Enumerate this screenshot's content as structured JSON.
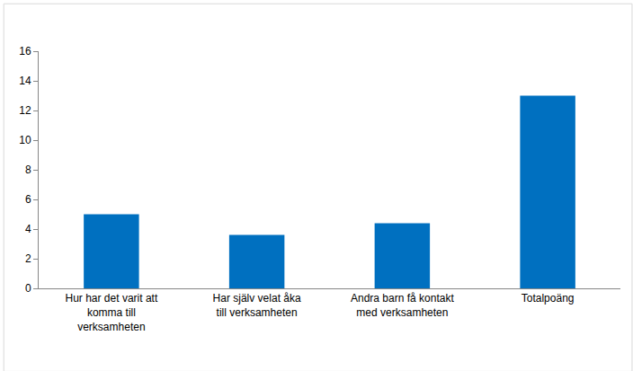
{
  "chart_data": {
    "type": "bar",
    "categories": [
      "Hur har det varit att komma till verksamheten",
      "Har själv velat åka till verksamheten",
      "Andra barn få kontakt med verksamheten",
      "Totalpoäng"
    ],
    "values": [
      5.0,
      3.6,
      4.4,
      13.0
    ],
    "color": "#0070c0",
    "ylim": [
      0,
      16
    ],
    "yticks": [
      0,
      2,
      4,
      6,
      8,
      10,
      12,
      14,
      16
    ],
    "grid": false
  }
}
